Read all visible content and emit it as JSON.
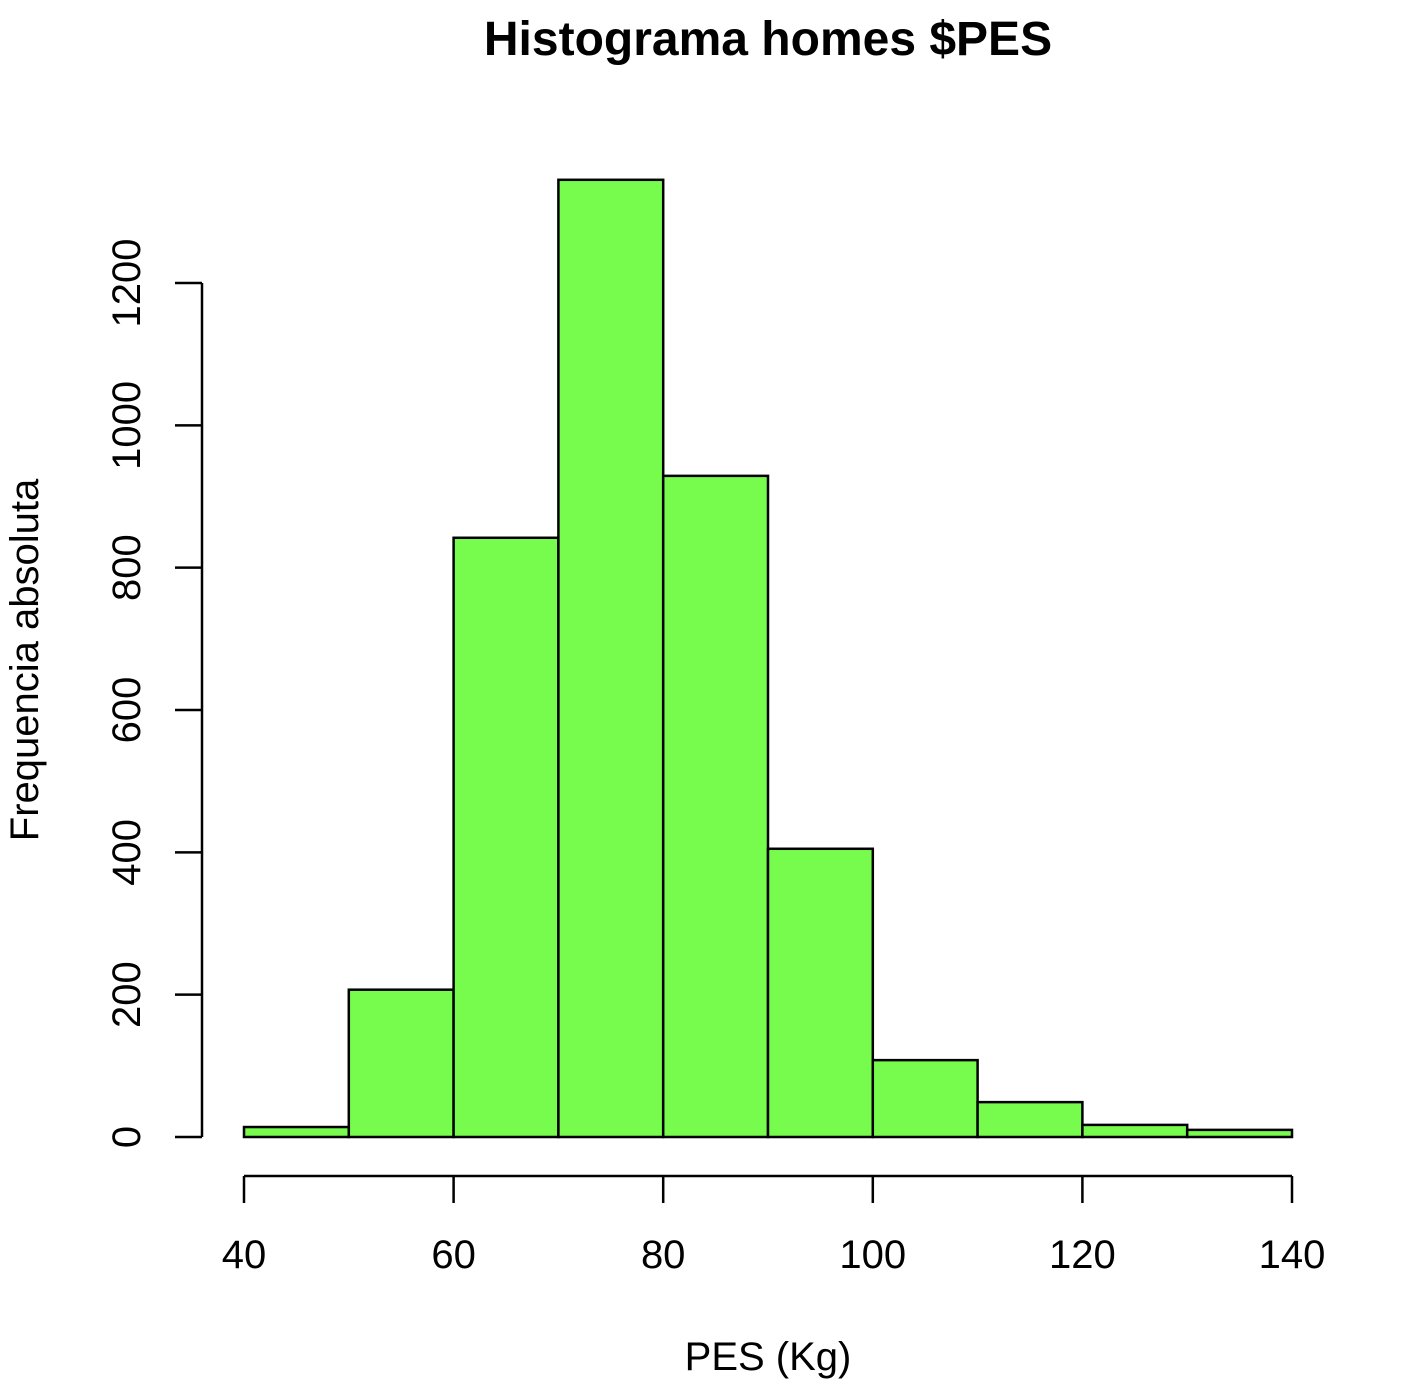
{
  "chart_data": {
    "type": "bar",
    "subtype": "histogram",
    "title": "Histograma homes $PES",
    "xlabel": "PES (Kg)",
    "ylabel": "Frequencia absoluta",
    "bins": [
      {
        "from": 40,
        "to": 50,
        "count": 14
      },
      {
        "from": 50,
        "to": 60,
        "count": 207
      },
      {
        "from": 60,
        "to": 70,
        "count": 842
      },
      {
        "from": 70,
        "to": 80,
        "count": 1345
      },
      {
        "from": 80,
        "to": 90,
        "count": 929
      },
      {
        "from": 90,
        "to": 100,
        "count": 405
      },
      {
        "from": 100,
        "to": 110,
        "count": 108
      },
      {
        "from": 110,
        "to": 120,
        "count": 49
      },
      {
        "from": 120,
        "to": 130,
        "count": 17
      },
      {
        "from": 130,
        "to": 140,
        "count": 10
      }
    ],
    "xlim": [
      40,
      140
    ],
    "ylim": [
      0,
      1345
    ],
    "xticks": [
      40,
      60,
      80,
      100,
      120,
      140
    ],
    "yticks": [
      0,
      200,
      400,
      600,
      800,
      1000,
      1200
    ],
    "bar_color": "#77FC4E",
    "grid": false,
    "legend": "none"
  }
}
